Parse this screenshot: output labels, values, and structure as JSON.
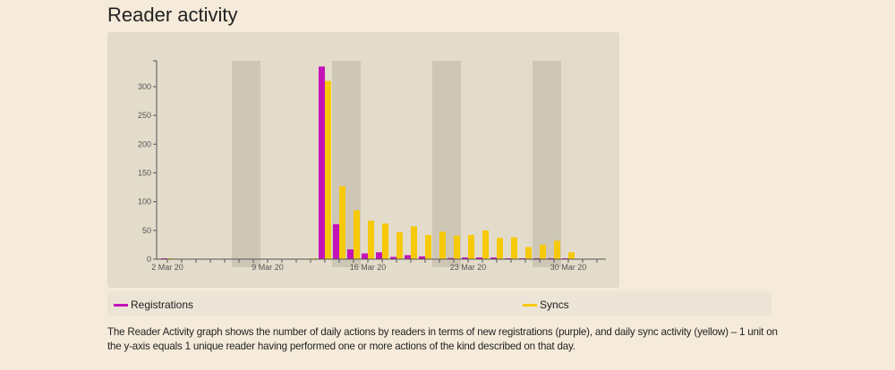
{
  "page": {
    "title": "Reader activity",
    "description": "The Reader Activity graph shows the number of daily actions by readers in terms of new registrations (purple), and daily sync activity (yellow) – 1 unit on the y-axis equals 1 unique reader having performed one or more actions of the kind described on that day."
  },
  "legend": {
    "items": [
      {
        "label": "Registrations",
        "color": "#c414b8"
      },
      {
        "label": "Syncs",
        "color": "#f6c90a"
      }
    ]
  },
  "chart_data": {
    "type": "bar",
    "x_start": "2020-03-02",
    "x": [
      "2 Mar",
      "3 Mar",
      "4 Mar",
      "5 Mar",
      "6 Mar",
      "7 Mar",
      "8 Mar",
      "9 Mar",
      "10 Mar",
      "11 Mar",
      "12 Mar",
      "13 Mar",
      "14 Mar",
      "15 Mar",
      "16 Mar",
      "17 Mar",
      "18 Mar",
      "19 Mar",
      "20 Mar",
      "21 Mar",
      "22 Mar",
      "23 Mar",
      "24 Mar",
      "25 Mar",
      "26 Mar",
      "27 Mar",
      "28 Mar",
      "29 Mar",
      "30 Mar"
    ],
    "series": [
      {
        "name": "Registrations",
        "color": "#c414b8",
        "values": [
          1,
          0,
          0,
          0,
          0,
          0,
          0,
          0,
          0,
          0,
          0,
          335,
          61,
          17,
          10,
          12,
          4,
          7,
          5,
          0,
          2,
          3,
          3,
          3,
          1,
          1,
          1,
          1,
          1
        ]
      },
      {
        "name": "Syncs",
        "color": "#f6c90a",
        "values": [
          1,
          0,
          0,
          0,
          0,
          0,
          0,
          0,
          0,
          0,
          1,
          310,
          127,
          85,
          67,
          62,
          47,
          57,
          42,
          48,
          41,
          42,
          50,
          37,
          38,
          21,
          25,
          32,
          12
        ]
      }
    ],
    "x_tick_labels": [
      "2 Mar 20",
      "9 Mar 20",
      "16 Mar 20",
      "23 Mar 20",
      "30 Mar 20"
    ],
    "y_ticks": [
      0,
      50,
      100,
      150,
      200,
      250,
      300
    ],
    "ylim": [
      0,
      345
    ],
    "weekend_shading": [
      "7-8 Mar",
      "14-15 Mar",
      "21-22 Mar",
      "28-29 Mar"
    ],
    "shading_color": "#cfc7b6",
    "grid": false,
    "legend_position": "bottom"
  }
}
